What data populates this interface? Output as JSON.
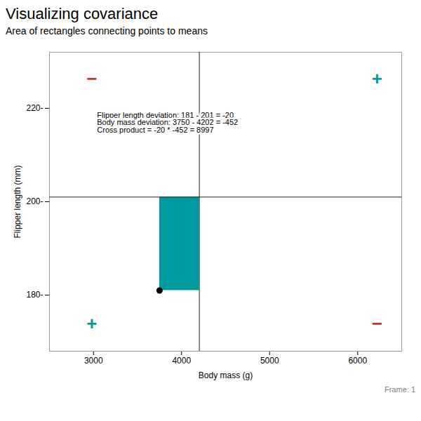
{
  "chart_data": {
    "type": "scatter",
    "title": "Visualizing covariance",
    "subtitle": "Area of rectangles connecting points to means",
    "xlabel": "Body mass (g)",
    "ylabel": "Flipper length (mm)",
    "x": [
      3750
    ],
    "values": [
      181
    ],
    "color": "black",
    "marker": "circle",
    "means": {
      "x": 4202,
      "y": 201,
      "color": "#222222"
    },
    "rectangle_color": "#009B9E",
    "signs": [
      {
        "text": "−",
        "color": "#C0392B"
      },
      {
        "text": "+",
        "color": "#009B9E"
      },
      {
        "text": "+",
        "color": "#009B9E"
      },
      {
        "text": "−",
        "color": "#C0392B"
      }
    ],
    "annotations": [
      "Flipper length deviation: 181 - 201 = -20",
      "Body mass deviation: 3750 - 4202 = -452",
      "Cross product = -20 * -452 = 8997"
    ],
    "caption": "Frame: 1",
    "xlim": [
      2500,
      6500
    ],
    "ylim": [
      168,
      232
    ],
    "xticks": [
      3000,
      4000,
      5000,
      6000
    ],
    "yticks": [
      {
        "value": 180,
        "label": "180-"
      },
      {
        "value": 200,
        "label": "200-"
      },
      {
        "value": 220,
        "label": "220-"
      }
    ],
    "grid": false
  }
}
